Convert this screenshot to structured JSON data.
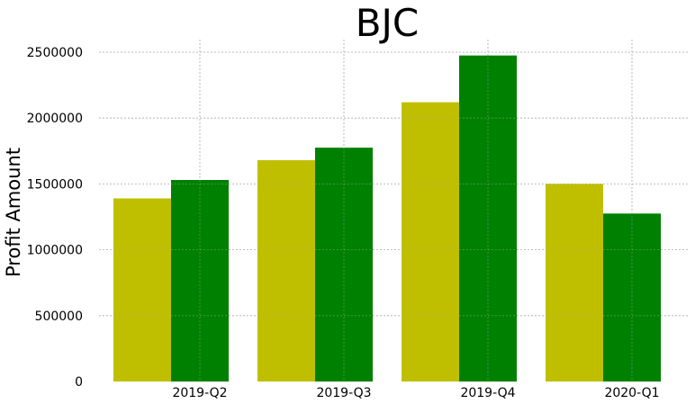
{
  "chart_data": {
    "type": "bar",
    "title": "BJC",
    "xlabel": "",
    "ylabel": "Profit Amount",
    "categories": [
      "2019-Q2",
      "2019-Q3",
      "2019-Q4",
      "2020-Q1"
    ],
    "series": [
      {
        "values": [
          1390000,
          1680000,
          2120000,
          1500000
        ],
        "color": "#bfbf00"
      },
      {
        "values": [
          1530000,
          1775000,
          2475000,
          1275000
        ],
        "color": "#008000"
      }
    ],
    "yticks": [
      "0",
      "500000",
      "1000000",
      "1500000",
      "2000000",
      "2500000"
    ],
    "ylim": [
      0,
      2600000
    ],
    "grid": true,
    "legend": "none"
  }
}
